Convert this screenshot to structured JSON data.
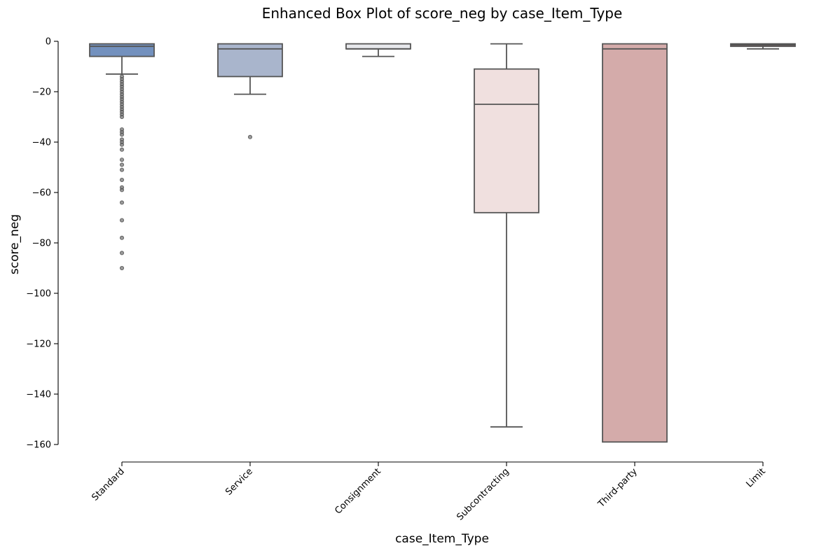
{
  "chart_data": {
    "type": "box",
    "title": "Enhanced Box Plot of score_neg by case_Item_Type",
    "xlabel": "case_Item_Type",
    "ylabel": "score_neg",
    "ylim": [
      -166.5,
      0
    ],
    "yticks": [
      0,
      -20,
      -40,
      -60,
      -80,
      -100,
      -120,
      -140,
      -160
    ],
    "grid": false,
    "categories": [
      "Standard",
      "Service",
      "Consignment",
      "Subcontracting",
      "Third-party",
      "Limit"
    ],
    "boxes": [
      {
        "category": "Standard",
        "color": "#7391be",
        "whisker_high": -1,
        "q3": -1,
        "median": -2,
        "q1": -6,
        "whisker_low": -13,
        "outliers": [
          -14,
          -15,
          -16,
          -17,
          -18,
          -19,
          -20,
          -21,
          -22,
          -23,
          -24,
          -25,
          -26,
          -27,
          -28,
          -29,
          -30,
          -35,
          -36,
          -37,
          -39,
          -40,
          -41,
          -43,
          -47,
          -49,
          -51,
          -55,
          -58,
          -59,
          -64,
          -71,
          -78,
          -84,
          -90
        ]
      },
      {
        "category": "Service",
        "color": "#a9b5cc",
        "whisker_high": -1,
        "q3": -1,
        "median": -3,
        "q1": -14,
        "whisker_low": -21,
        "outliers": [
          -38
        ]
      },
      {
        "category": "Consignment",
        "color": "#e7e8ec",
        "whisker_high": -1,
        "q3": -1,
        "median": -3,
        "q1": -3,
        "whisker_low": -6,
        "outliers": []
      },
      {
        "category": "Subcontracting",
        "color": "#f0e0df",
        "whisker_high": -1,
        "q3": -11,
        "median": -25,
        "q1": -68,
        "whisker_low": -153,
        "outliers": []
      },
      {
        "category": "Third-party",
        "color": "#d4abaa",
        "whisker_high": -1,
        "q3": -1,
        "median": -3,
        "q1": -159,
        "whisker_low": -159,
        "outliers": []
      },
      {
        "category": "Limit",
        "color": "#b57a77",
        "whisker_high": -1,
        "q3": -1,
        "median": -1.5,
        "q1": -2,
        "whisker_low": -3,
        "outliers": []
      }
    ]
  }
}
